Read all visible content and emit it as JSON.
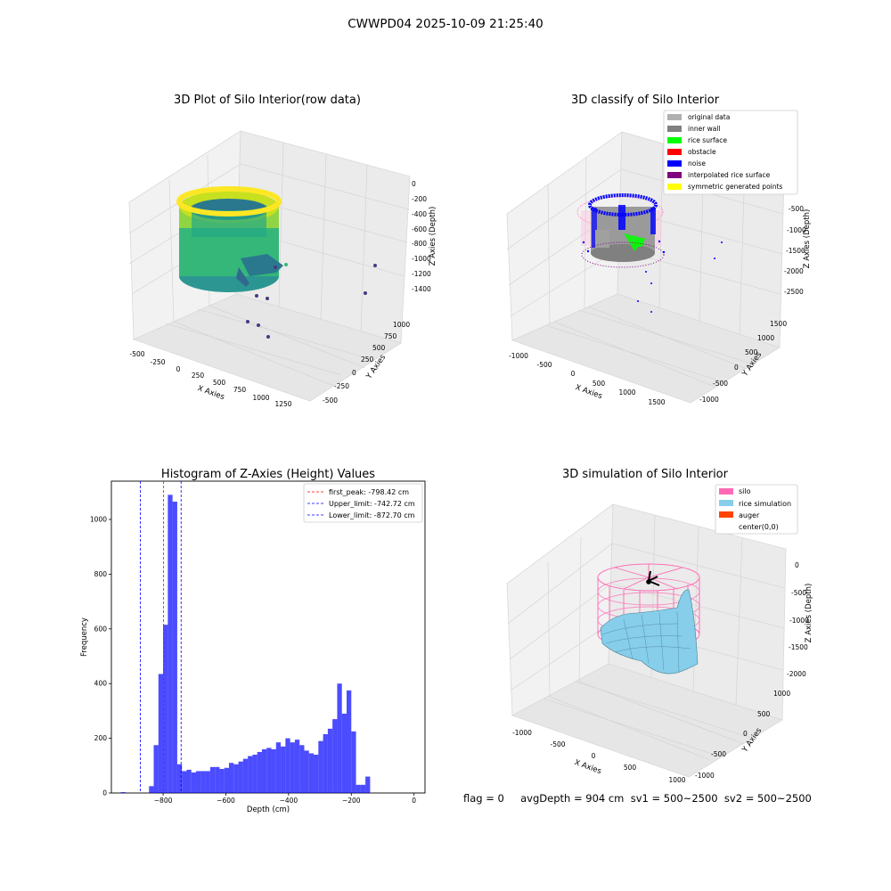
{
  "suptitle": "CWWPD04 2025-10-09 21:25:40",
  "panels": {
    "raw": {
      "title": "3D Plot of Silo Interior(row data)",
      "xlabel": "X Axies",
      "ylabel": "Y Axies",
      "zlabel": "Z Axies (Depth)",
      "xticks": [
        "-500",
        "-250",
        "0",
        "250",
        "500",
        "750",
        "1000",
        "1250"
      ],
      "yticks": [
        "-500",
        "-250",
        "0",
        "250",
        "500",
        "750",
        "1000"
      ],
      "zticks": [
        "0",
        "-200",
        "-400",
        "-600",
        "-800",
        "-1000",
        "-1200",
        "-1400"
      ],
      "colormap": "viridis"
    },
    "classify": {
      "title": "3D classify of Silo Interior",
      "xlabel": "X Axies",
      "ylabel": "Y Axies",
      "zlabel": "Z Axies (Depth)",
      "xticks": [
        "-1000",
        "-500",
        "0",
        "500",
        "1000",
        "1500"
      ],
      "yticks": [
        "-1000",
        "-500",
        "0",
        "500",
        "1000",
        "1500"
      ],
      "zticks": [
        "-500",
        "-1000",
        "-1500",
        "-2000",
        "-2500"
      ],
      "legend": [
        {
          "label": "original data",
          "color": "#b0b0b0"
        },
        {
          "label": "inner wall",
          "color": "#808080"
        },
        {
          "label": "rice surface",
          "color": "#00ff00"
        },
        {
          "label": "obstacle",
          "color": "#ff0000"
        },
        {
          "label": "noise",
          "color": "#0000ff"
        },
        {
          "label": "interpolated rice surface",
          "color": "#800080"
        },
        {
          "label": "symmetric generated points",
          "color": "#ffff00"
        }
      ]
    },
    "simulation": {
      "title": "3D simulation of Silo Interior",
      "xlabel": "X Axies",
      "ylabel": "Y Axies",
      "zlabel": "Z Axies (Depth)",
      "xticks": [
        "-1000",
        "-500",
        "0",
        "500",
        "1000"
      ],
      "yticks": [
        "-1000",
        "-500",
        "0",
        "500",
        "1000"
      ],
      "zticks": [
        "0",
        "-500",
        "-1000",
        "-1500",
        "-2000"
      ],
      "legend": [
        {
          "label": "silo",
          "color": "#ff69b4"
        },
        {
          "label": "rice simulation",
          "color": "#87ceeb"
        },
        {
          "label": "auger",
          "color": "#ff4500"
        },
        {
          "label": "center(0,0)",
          "color": "#ffffff"
        }
      ]
    }
  },
  "status_text": "flag = 0     avgDepth = 904 cm  sv1 = 500~2500  sv2 = 500~2500",
  "chart_data": [
    {
      "type": "bar",
      "title": "Histogram of Z-Axies (Height) Values",
      "xlabel": "Depth (cm)",
      "ylabel": "Frequency",
      "xlim": [
        -965,
        35
      ],
      "ylim": [
        0,
        1140
      ],
      "xticks": [
        -800,
        -600,
        -400,
        -200,
        0
      ],
      "yticks": [
        0,
        200,
        400,
        600,
        800,
        1000
      ],
      "bar_color": "#0000ff",
      "bin_width": 15,
      "bin_starts": [
        -935,
        -920,
        -905,
        -890,
        -875,
        -860,
        -845,
        -830,
        -815,
        -800,
        -785,
        -770,
        -755,
        -740,
        -725,
        -710,
        -695,
        -680,
        -665,
        -650,
        -635,
        -620,
        -605,
        -590,
        -575,
        -560,
        -545,
        -530,
        -515,
        -500,
        -485,
        -470,
        -455,
        -440,
        -425,
        -410,
        -395,
        -380,
        -365,
        -350,
        -335,
        -320,
        -305,
        -290,
        -275,
        -260,
        -245,
        -230,
        -215,
        -200,
        -185,
        -170,
        -155,
        -140,
        -125,
        -110,
        -95,
        -80,
        -65,
        -50,
        -35,
        -20,
        -5
      ],
      "values": [
        3,
        0,
        0,
        0,
        0,
        0,
        25,
        175,
        435,
        615,
        1090,
        1065,
        105,
        80,
        85,
        75,
        80,
        80,
        80,
        95,
        95,
        88,
        92,
        110,
        105,
        115,
        125,
        135,
        140,
        150,
        160,
        165,
        160,
        185,
        170,
        200,
        185,
        195,
        175,
        155,
        145,
        140,
        190,
        215,
        235,
        270,
        400,
        290,
        375,
        225,
        30,
        30,
        60,
        0,
        0,
        0,
        0,
        0,
        0,
        0,
        0,
        0,
        0
      ],
      "vlines": [
        {
          "label": "first_peak: -798.42 cm",
          "x": -798.42,
          "color": "#ff0000"
        },
        {
          "label": "Upper_limit: -742.72 cm",
          "x": -742.72,
          "color": "#0000ff"
        },
        {
          "label": "Lower_limit: -872.70 cm",
          "x": -872.7,
          "color": "#0000ff"
        }
      ]
    }
  ]
}
